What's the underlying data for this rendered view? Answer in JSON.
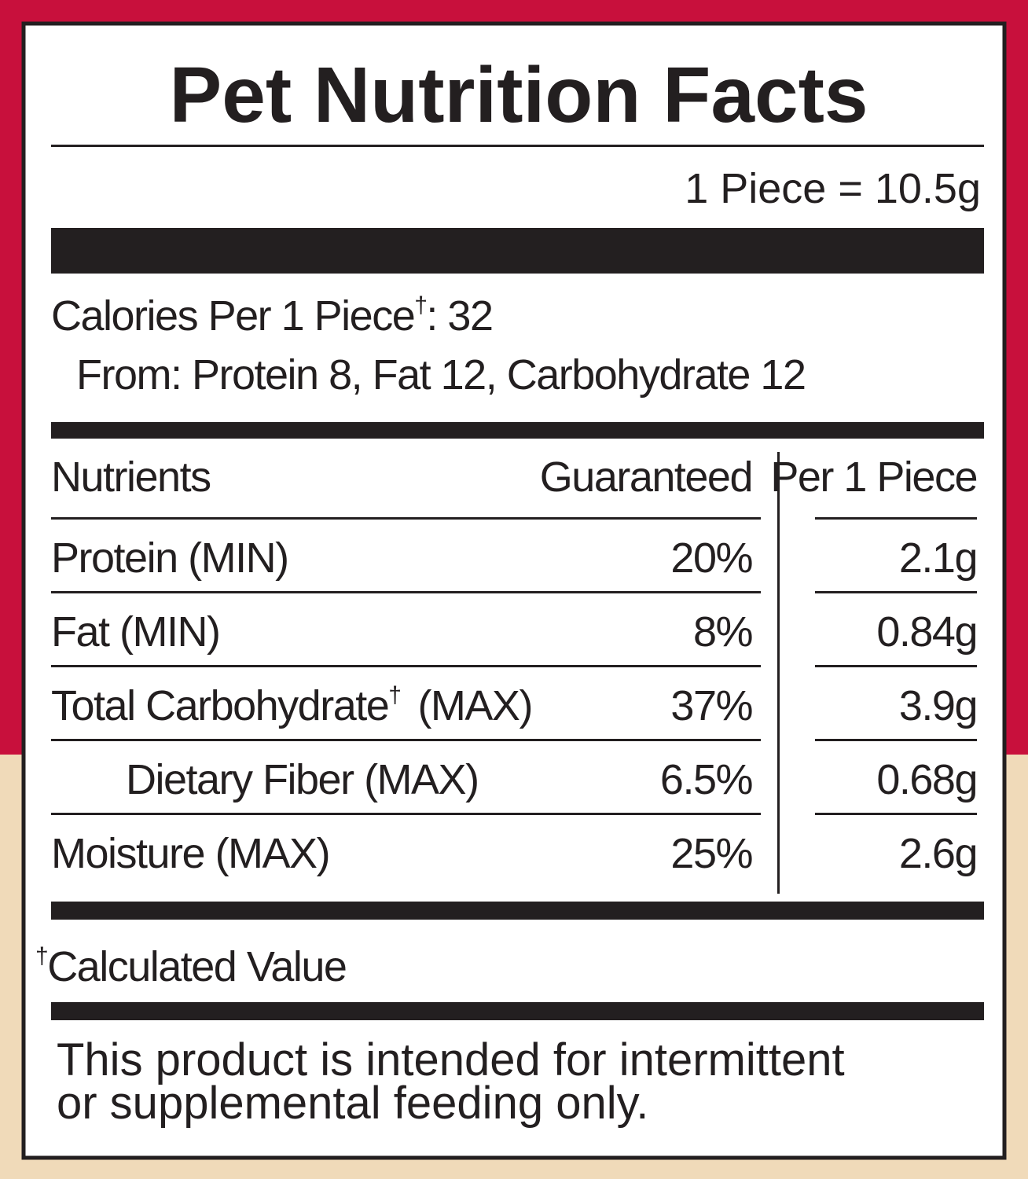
{
  "title": "Pet Nutrition Facts",
  "serving": "1 Piece = 10.5g",
  "calories": {
    "label": "Calories Per 1 Piece",
    "mark": "†",
    "suffix": ": 32",
    "from": "From: Protein 8, Fat 12, Carbohydrate 12"
  },
  "table": {
    "headers": [
      "Nutrients",
      "Guaranteed",
      "Per 1 Piece"
    ],
    "rows": [
      {
        "name": "Protein (MIN)",
        "guaranteed": "20%",
        "per_piece": "2.1g"
      },
      {
        "name": "Fat (MIN)",
        "guaranteed": "8%",
        "per_piece": "0.84g"
      },
      {
        "name": "Total Carbohydrate",
        "mark": "†",
        "qualifier": "(MAX)",
        "guaranteed": "37%",
        "per_piece": "3.9g"
      },
      {
        "name": "Dietary Fiber (MAX)",
        "guaranteed": "6.5%",
        "per_piece": "0.68g"
      },
      {
        "name": "Moisture (MAX)",
        "guaranteed": "25%",
        "per_piece": "2.6g"
      }
    ]
  },
  "footnote": {
    "mark": "†",
    "text": "Calculated Value"
  },
  "disclaimer": [
    "This product is intended for intermittent",
    "or supplemental feeding only."
  ]
}
